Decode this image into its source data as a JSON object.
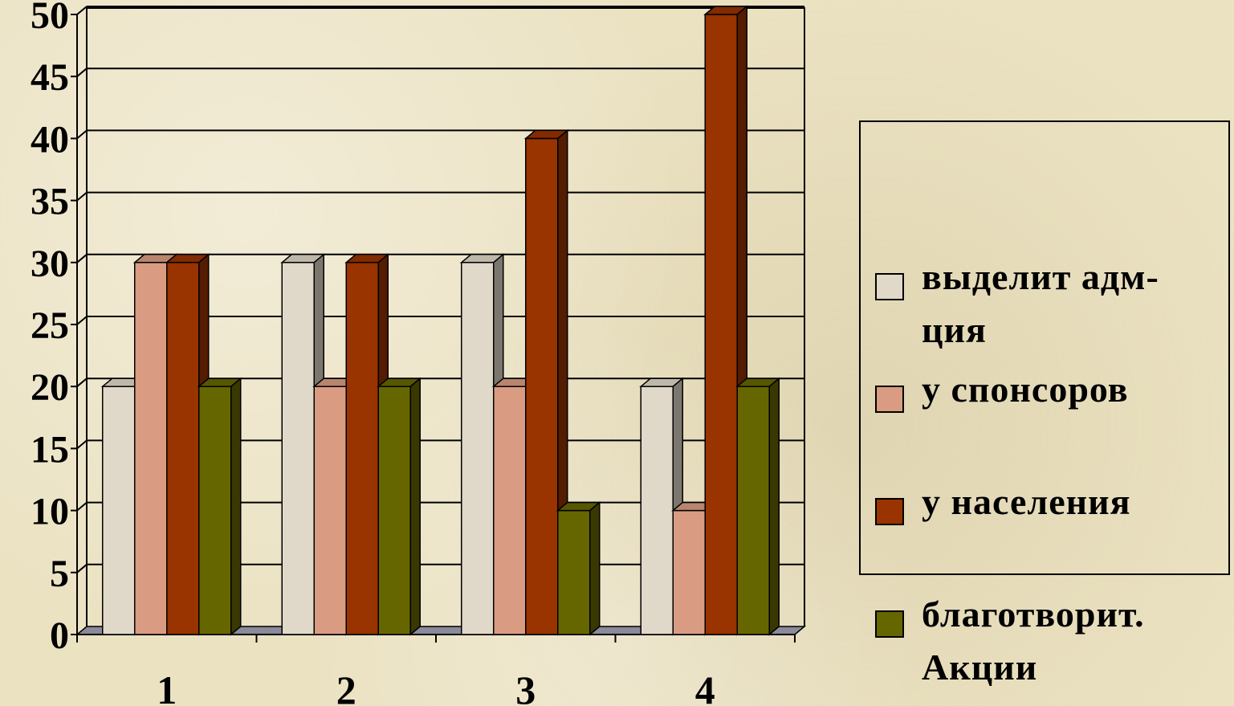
{
  "chart_data": {
    "type": "bar",
    "categories": [
      "1",
      "2",
      "3",
      "4"
    ],
    "series": [
      {
        "name": "выделит адм-ция",
        "values": [
          20,
          30,
          30,
          20
        ],
        "color": "#e0d8c8"
      },
      {
        "name": "у спонсоров",
        "values": [
          30,
          20,
          20,
          10
        ],
        "color": "#d99c82"
      },
      {
        "name": "у населения",
        "values": [
          30,
          30,
          40,
          50
        ],
        "color": "#993300"
      },
      {
        "name": "благотворит. Акции",
        "values": [
          20,
          20,
          10,
          20
        ],
        "color": "#666600"
      }
    ],
    "y_ticks": [
      "0",
      "5",
      "10",
      "15",
      "20",
      "25",
      "30",
      "35",
      "40",
      "45",
      "50"
    ],
    "ylim": [
      0,
      50
    ],
    "grid": true,
    "legend_position": "right",
    "legend": [
      {
        "label_line1": "выделит адм-",
        "label_line2": "ция"
      },
      {
        "label_line1": "у спонсоров",
        "label_line2": ""
      },
      {
        "label_line1": "у населения",
        "label_line2": ""
      },
      {
        "label_line1": "благотворит.",
        "label_line2": "Акции"
      }
    ]
  }
}
